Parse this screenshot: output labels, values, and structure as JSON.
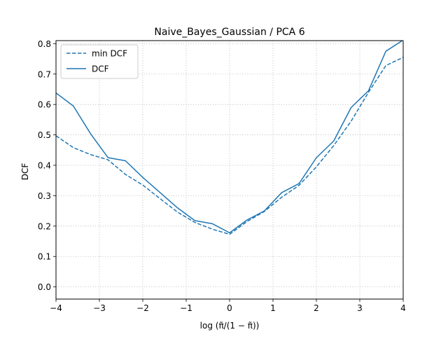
{
  "chart_data": {
    "type": "line",
    "title": "Naive_Bayes_Gaussian / PCA 6",
    "xlabel": "log (π̃/(1 − π̃))",
    "ylabel": "DCF",
    "xlim": [
      -4,
      4
    ],
    "ylim": [
      -0.04,
      0.81
    ],
    "xticks": [
      -4,
      -3,
      -2,
      -1,
      0,
      1,
      2,
      3,
      4
    ],
    "xtick_labels": [
      "−4",
      "−3",
      "−2",
      "−1",
      "0",
      "1",
      "2",
      "3",
      "4"
    ],
    "yticks": [
      0.0,
      0.1,
      0.2,
      0.3,
      0.4,
      0.5,
      0.6,
      0.7,
      0.8
    ],
    "ytick_labels": [
      "0.0",
      "0.1",
      "0.2",
      "0.3",
      "0.4",
      "0.5",
      "0.6",
      "0.7",
      "0.8"
    ],
    "grid": true,
    "legend_position": "upper-left",
    "x": [
      -4.0,
      -3.6,
      -3.2,
      -2.8,
      -2.4,
      -2.0,
      -1.6,
      -1.2,
      -0.8,
      -0.4,
      0.0,
      0.4,
      0.8,
      1.2,
      1.6,
      2.0,
      2.4,
      2.8,
      3.2,
      3.6,
      4.0
    ],
    "series": [
      {
        "name": "min DCF",
        "style": "dashed",
        "color": "#1f77b4",
        "values": [
          0.497,
          0.458,
          0.435,
          0.418,
          0.37,
          0.335,
          0.29,
          0.246,
          0.212,
          0.19,
          0.173,
          0.215,
          0.248,
          0.295,
          0.334,
          0.395,
          0.465,
          0.545,
          0.64,
          0.728,
          0.755
        ]
      },
      {
        "name": "DCF",
        "style": "solid",
        "color": "#1f77b4",
        "values": [
          0.638,
          0.595,
          0.503,
          0.425,
          0.415,
          0.36,
          0.31,
          0.26,
          0.218,
          0.208,
          0.178,
          0.22,
          0.25,
          0.31,
          0.34,
          0.425,
          0.48,
          0.59,
          0.645,
          0.775,
          0.812
        ]
      }
    ]
  }
}
